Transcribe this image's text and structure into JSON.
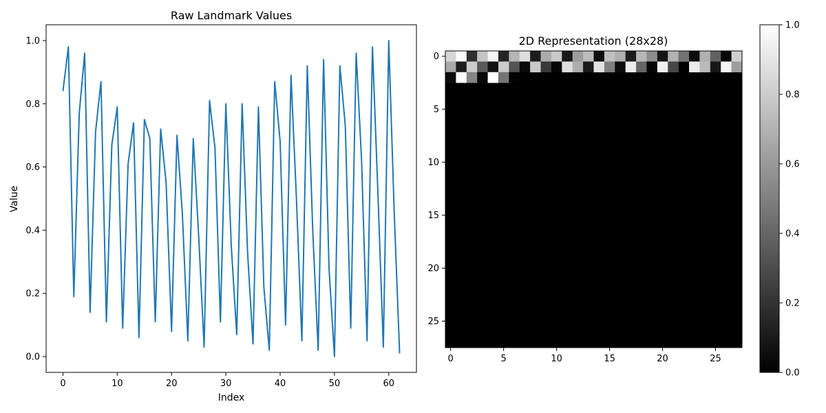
{
  "chart_data": [
    {
      "type": "line",
      "title": "Raw Landmark Values",
      "xlabel": "Index",
      "ylabel": "Value",
      "xlim": [
        -3.1,
        65.1
      ],
      "ylim": [
        -0.05,
        1.05
      ],
      "xticks": [
        0,
        10,
        20,
        30,
        40,
        50,
        60
      ],
      "yticks": [
        0.0,
        0.2,
        0.4,
        0.6,
        0.8,
        1.0
      ],
      "xtick_labels": [
        "0",
        "10",
        "20",
        "30",
        "40",
        "50",
        "60"
      ],
      "ytick_labels": [
        "0.0",
        "0.2",
        "0.4",
        "0.6",
        "0.8",
        "1.0"
      ],
      "grid": false,
      "series": [
        {
          "color": "#1f77b4",
          "x": [
            0,
            1,
            2,
            3,
            4,
            5,
            6,
            7,
            8,
            9,
            10,
            11,
            12,
            13,
            14,
            15,
            16,
            17,
            18,
            19,
            20,
            21,
            22,
            23,
            24,
            25,
            26,
            27,
            28,
            29,
            30,
            31,
            32,
            33,
            34,
            35,
            36,
            37,
            38,
            39,
            40,
            41,
            42,
            43,
            44,
            45,
            46,
            47,
            48,
            49,
            50,
            51,
            52,
            53,
            54,
            55,
            56,
            57,
            58,
            59,
            60,
            61,
            62
          ],
          "values": [
            0.84,
            0.98,
            0.19,
            0.77,
            0.96,
            0.14,
            0.71,
            0.87,
            0.11,
            0.67,
            0.79,
            0.09,
            0.61,
            0.74,
            0.06,
            0.75,
            0.69,
            0.11,
            0.72,
            0.55,
            0.08,
            0.7,
            0.45,
            0.05,
            0.69,
            0.38,
            0.03,
            0.81,
            0.66,
            0.11,
            0.8,
            0.35,
            0.07,
            0.8,
            0.33,
            0.04,
            0.79,
            0.22,
            0.02,
            0.87,
            0.68,
            0.1,
            0.89,
            0.5,
            0.05,
            0.92,
            0.4,
            0.02,
            0.94,
            0.28,
            0.0,
            0.92,
            0.73,
            0.09,
            0.96,
            0.62,
            0.05,
            0.98,
            0.52,
            0.03,
            1.0,
            0.46,
            0.01
          ]
        }
      ]
    },
    {
      "type": "heatmap",
      "title": "2D Representation (28x28)",
      "colormap": "gray",
      "rows": 28,
      "cols": 28,
      "xticks": [
        0,
        5,
        10,
        15,
        20,
        25
      ],
      "yticks": [
        0,
        5,
        10,
        15,
        20,
        25
      ],
      "xtick_labels": [
        "0",
        "5",
        "10",
        "15",
        "20",
        "25"
      ],
      "ytick_labels": [
        "0",
        "5",
        "10",
        "15",
        "20",
        "25"
      ],
      "note_fill_value": 0,
      "filled_rows": [
        [
          0.84,
          0.98,
          0.19,
          0.77,
          0.96,
          0.14,
          0.71,
          0.87,
          0.11,
          0.67,
          0.79,
          0.09,
          0.61,
          0.74,
          0.06,
          0.75,
          0.69,
          0.11,
          0.72,
          0.55,
          0.08,
          0.7,
          0.45,
          0.05,
          0.69,
          0.38,
          0.03,
          0.81
        ],
        [
          0.66,
          0.11,
          0.8,
          0.35,
          0.07,
          0.8,
          0.33,
          0.04,
          0.79,
          0.22,
          0.02,
          0.87,
          0.68,
          0.1,
          0.89,
          0.5,
          0.05,
          0.92,
          0.4,
          0.02,
          0.94,
          0.28,
          0.0,
          0.92,
          0.73,
          0.09,
          0.96,
          0.62
        ],
        [
          0.05,
          0.98,
          0.52,
          0.03,
          1.0,
          0.46,
          0.01,
          0,
          0,
          0,
          0,
          0,
          0,
          0,
          0,
          0,
          0,
          0,
          0,
          0,
          0,
          0,
          0,
          0,
          0,
          0,
          0,
          0
        ]
      ],
      "colorbar": {
        "range": [
          0.0,
          1.0
        ],
        "ticks": [
          0.0,
          0.2,
          0.4,
          0.6,
          0.8,
          1.0
        ],
        "tick_labels": [
          "0.0",
          "0.2",
          "0.4",
          "0.6",
          "0.8",
          "1.0"
        ]
      }
    }
  ]
}
